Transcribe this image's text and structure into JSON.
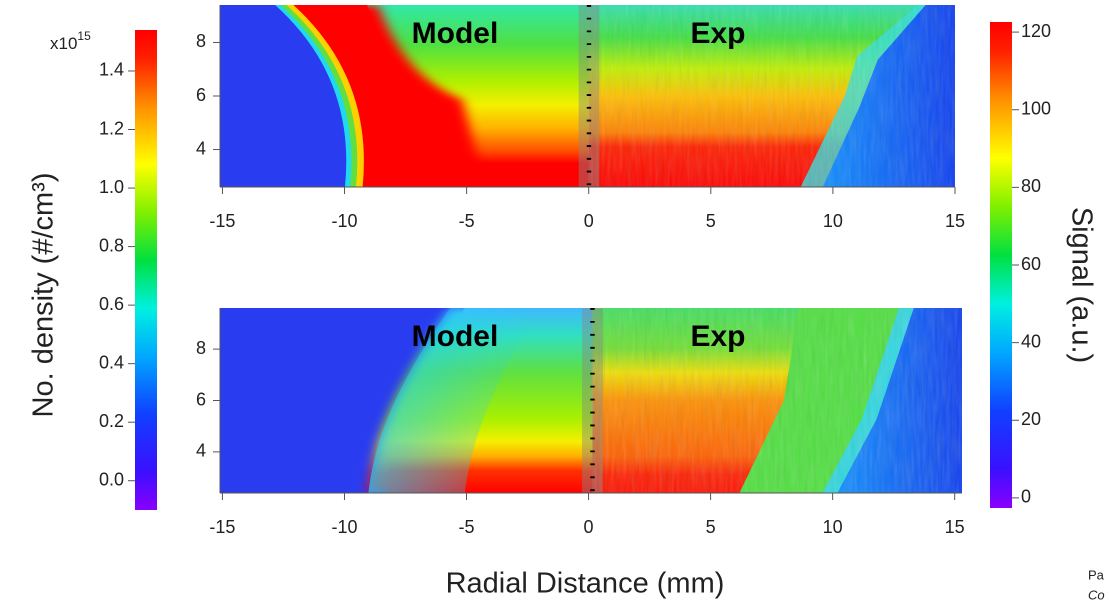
{
  "chart_data": [
    {
      "type": "heatmap",
      "annotations": [
        "Model",
        "Exp"
      ],
      "xlim": [
        -15.1,
        15
      ],
      "xticks": [
        -15,
        -10,
        -5,
        0,
        5,
        10,
        15
      ],
      "ylim": [
        2.6,
        9.4
      ],
      "yticks": [
        4,
        6,
        8
      ]
    },
    {
      "type": "heatmap",
      "annotations": [
        "Model",
        "Exp"
      ],
      "xlim": [
        -15.1,
        15.3
      ],
      "xticks": [
        -15,
        -10,
        -5,
        0,
        5,
        10,
        15
      ],
      "ylim": [
        2.4,
        9.6
      ],
      "yticks": [
        4,
        6,
        8
      ]
    }
  ],
  "xlabel": "Radial Distance (mm)",
  "colorbar_left": {
    "label": "No. density (#/cm³)",
    "multiplier": "x10",
    "multiplier_exponent": "15",
    "lim": [
      -0.1,
      1.54
    ],
    "ticks": [
      {
        "value": 0,
        "label": "0.0"
      },
      0.2,
      0.4,
      0.6,
      0.8,
      {
        "value": 1,
        "label": "1.0"
      },
      1.2,
      1.4
    ]
  },
  "colorbar_right": {
    "label": "Signal (a.u.)",
    "lim": [
      -2.6,
      122.6
    ],
    "ticks": [
      0,
      20,
      40,
      60,
      80,
      100,
      120
    ]
  },
  "footnote": [
    "Pa",
    "Co"
  ]
}
